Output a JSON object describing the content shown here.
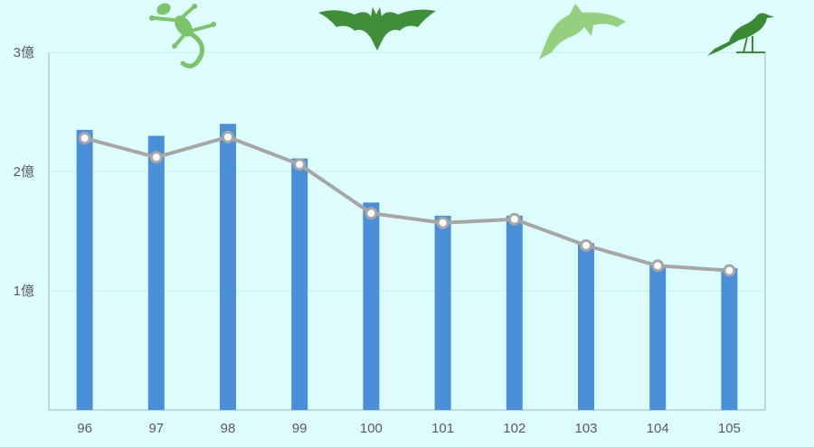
{
  "chart_data": {
    "type": "bar",
    "title": "",
    "xlabel": "",
    "ylabel": "",
    "categories": [
      "96",
      "97",
      "98",
      "99",
      "100",
      "101",
      "102",
      "103",
      "104",
      "105"
    ],
    "series": [
      {
        "kind": "bar",
        "values": [
          2.35,
          2.3,
          2.4,
          2.11,
          1.74,
          1.63,
          1.63,
          1.4,
          1.22,
          1.19
        ]
      },
      {
        "kind": "line",
        "values": [
          2.28,
          2.12,
          2.29,
          2.06,
          1.65,
          1.57,
          1.6,
          1.38,
          1.21,
          1.17
        ]
      }
    ],
    "ylim": [
      0,
      3
    ],
    "yticks": [
      {
        "value": 1,
        "label": "1億"
      },
      {
        "value": 2,
        "label": "2億"
      },
      {
        "value": 3,
        "label": "3億"
      }
    ],
    "grid": true,
    "legend": "none",
    "colors": {
      "bar": "#4a90d9",
      "line": "#a6a6a6",
      "axis": "#9fb8b8",
      "grid": "#c8eeee"
    },
    "decorations": [
      {
        "icon": "lizard-icon",
        "color": "#7cc46a"
      },
      {
        "icon": "bat-icon",
        "color": "#3f8f3a"
      },
      {
        "icon": "dolphin-icon",
        "color": "#95d07e"
      },
      {
        "icon": "bird-icon",
        "color": "#3a8a34"
      }
    ]
  }
}
